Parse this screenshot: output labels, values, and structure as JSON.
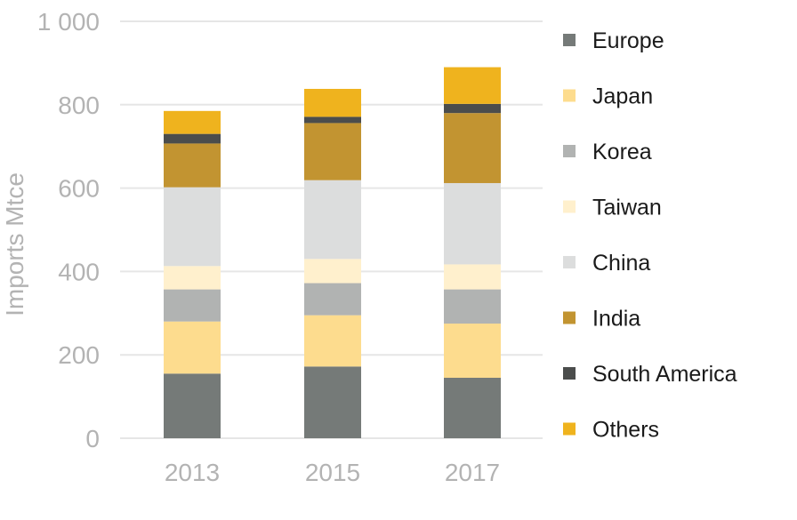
{
  "chart_data": {
    "type": "bar",
    "stacked": true,
    "categories": [
      "2013",
      "2015",
      "2017"
    ],
    "ylabel": "Imports Mtce",
    "ylim": [
      0,
      1000
    ],
    "yticks": [
      {
        "value": 0,
        "label": "0"
      },
      {
        "value": 200,
        "label": "200"
      },
      {
        "value": 400,
        "label": "400"
      },
      {
        "value": 600,
        "label": "600"
      },
      {
        "value": 800,
        "label": "800"
      },
      {
        "value": 1000,
        "label": "1 000"
      }
    ],
    "grid": true,
    "legend_position": "right",
    "series": [
      {
        "name": "Europe",
        "color": "#757a78",
        "values": [
          155,
          172,
          145
        ]
      },
      {
        "name": "Japan",
        "color": "#fddc8e",
        "values": [
          125,
          123,
          130
        ]
      },
      {
        "name": "Korea",
        "color": "#b1b3b2",
        "values": [
          77,
          77,
          82
        ]
      },
      {
        "name": "Taiwan",
        "color": "#fff0cd",
        "values": [
          56,
          58,
          60
        ]
      },
      {
        "name": "China",
        "color": "#dcdddd",
        "values": [
          189,
          189,
          195
        ]
      },
      {
        "name": "India",
        "color": "#c29431",
        "values": [
          105,
          137,
          168
        ]
      },
      {
        "name": "South America",
        "color": "#4b4d4c",
        "values": [
          23,
          15,
          22
        ]
      },
      {
        "name": "Others",
        "color": "#efb31e",
        "values": [
          55,
          67,
          88
        ]
      }
    ]
  }
}
